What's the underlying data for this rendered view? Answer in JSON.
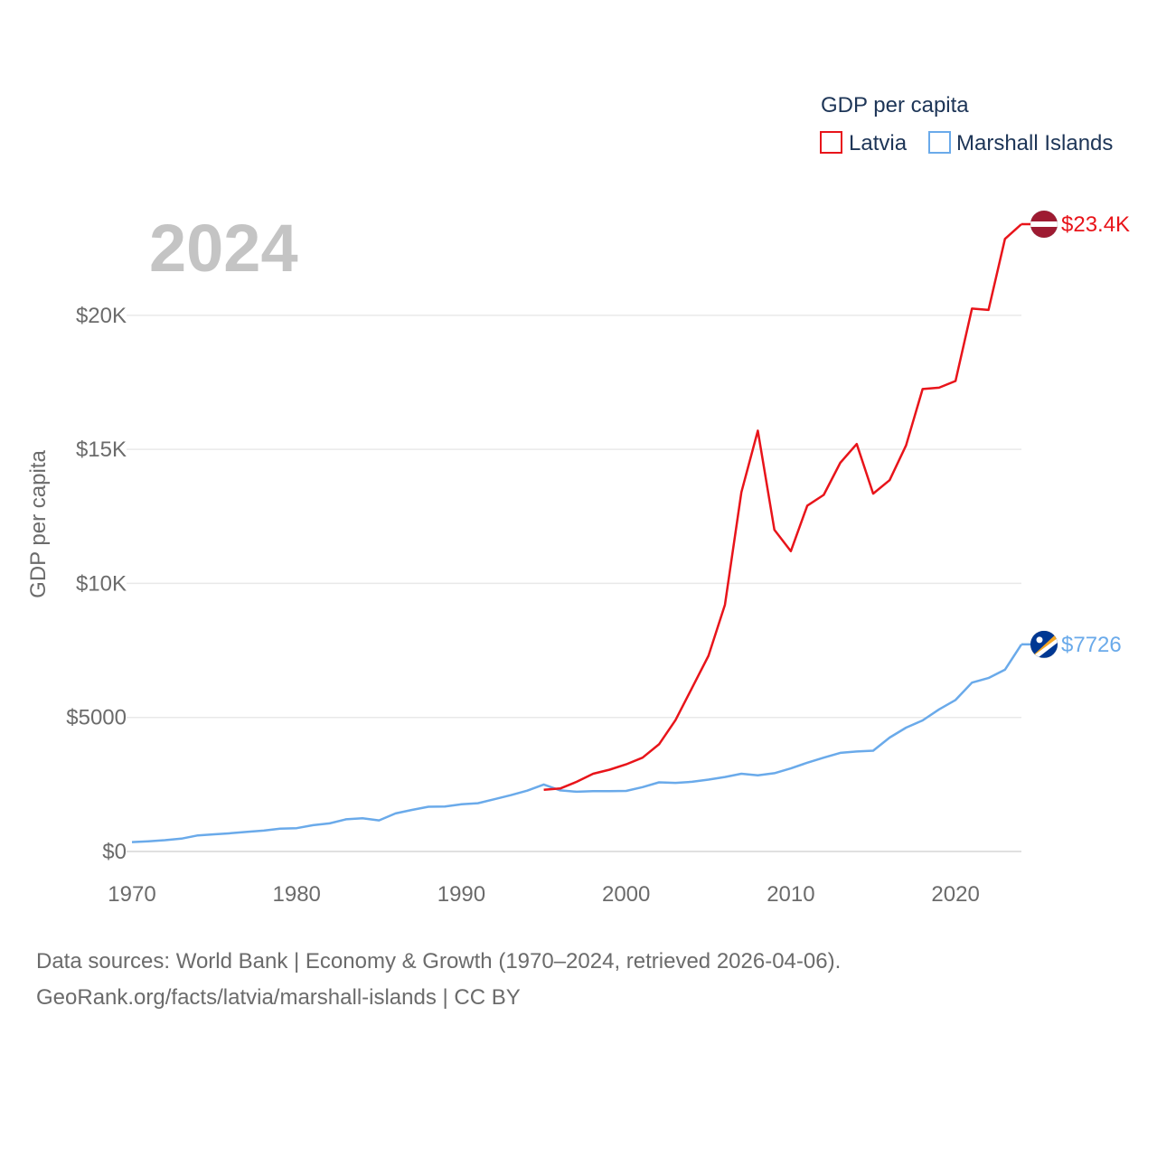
{
  "chart_data": {
    "type": "line",
    "year_label": "2024",
    "ylabel": "GDP per capita",
    "legend": {
      "title": "GDP per capita",
      "position": "top-right"
    },
    "xlim": [
      1970,
      2024
    ],
    "ylim": [
      0,
      23400
    ],
    "x_ticks": [
      1970,
      1980,
      1990,
      2000,
      2010,
      2020
    ],
    "x_tick_labels": [
      "1970",
      "1980",
      "1990",
      "2000",
      "2010",
      "2020"
    ],
    "y_ticks": [
      0,
      5000,
      10000,
      15000,
      20000
    ],
    "y_tick_labels": [
      "$0",
      "$5000",
      "$10K",
      "$15K",
      "$20K"
    ],
    "series": [
      {
        "name": "Latvia",
        "color": "#e8141a",
        "flag_icon": "latvia-flag-icon",
        "end_label": "$23.4K",
        "points": [
          [
            1995,
            2300
          ],
          [
            1996,
            2350
          ],
          [
            1997,
            2600
          ],
          [
            1998,
            2900
          ],
          [
            1999,
            3050
          ],
          [
            2000,
            3250
          ],
          [
            2001,
            3500
          ],
          [
            2002,
            4000
          ],
          [
            2003,
            4900
          ],
          [
            2004,
            6100
          ],
          [
            2005,
            7300
          ],
          [
            2006,
            9200
          ],
          [
            2007,
            13400
          ],
          [
            2008,
            15700
          ],
          [
            2009,
            12000
          ],
          [
            2010,
            11200
          ],
          [
            2011,
            12900
          ],
          [
            2012,
            13300
          ],
          [
            2013,
            14500
          ],
          [
            2014,
            15200
          ],
          [
            2015,
            13350
          ],
          [
            2016,
            13850
          ],
          [
            2017,
            15150
          ],
          [
            2018,
            17250
          ],
          [
            2019,
            17300
          ],
          [
            2020,
            17550
          ],
          [
            2021,
            20250
          ],
          [
            2022,
            20200
          ],
          [
            2023,
            22850
          ],
          [
            2024,
            23400
          ]
        ]
      },
      {
        "name": "Marshall Islands",
        "color": "#6aaaea",
        "flag_icon": "marshall-islands-flag-icon",
        "end_label": "$7726",
        "points": [
          [
            1970,
            350
          ],
          [
            1971,
            380
          ],
          [
            1972,
            420
          ],
          [
            1973,
            480
          ],
          [
            1974,
            600
          ],
          [
            1975,
            640
          ],
          [
            1976,
            680
          ],
          [
            1977,
            730
          ],
          [
            1978,
            780
          ],
          [
            1979,
            850
          ],
          [
            1980,
            870
          ],
          [
            1981,
            980
          ],
          [
            1982,
            1050
          ],
          [
            1983,
            1200
          ],
          [
            1984,
            1240
          ],
          [
            1985,
            1160
          ],
          [
            1986,
            1420
          ],
          [
            1987,
            1550
          ],
          [
            1988,
            1670
          ],
          [
            1989,
            1680
          ],
          [
            1990,
            1760
          ],
          [
            1991,
            1800
          ],
          [
            1992,
            1950
          ],
          [
            1993,
            2100
          ],
          [
            1994,
            2270
          ],
          [
            1995,
            2500
          ],
          [
            1996,
            2280
          ],
          [
            1997,
            2230
          ],
          [
            1998,
            2250
          ],
          [
            1999,
            2250
          ],
          [
            2000,
            2260
          ],
          [
            2001,
            2400
          ],
          [
            2002,
            2580
          ],
          [
            2003,
            2560
          ],
          [
            2004,
            2600
          ],
          [
            2005,
            2680
          ],
          [
            2006,
            2780
          ],
          [
            2007,
            2900
          ],
          [
            2008,
            2840
          ],
          [
            2009,
            2920
          ],
          [
            2010,
            3100
          ],
          [
            2011,
            3310
          ],
          [
            2012,
            3500
          ],
          [
            2013,
            3680
          ],
          [
            2014,
            3730
          ],
          [
            2015,
            3760
          ],
          [
            2016,
            4250
          ],
          [
            2017,
            4620
          ],
          [
            2018,
            4890
          ],
          [
            2019,
            5300
          ],
          [
            2020,
            5650
          ],
          [
            2021,
            6300
          ],
          [
            2022,
            6470
          ],
          [
            2023,
            6780
          ],
          [
            2024,
            7726
          ]
        ]
      }
    ]
  },
  "footer": {
    "line1": "Data sources: World Bank | Economy & Growth (1970–2024, retrieved 2026-04-06).",
    "line2": "GeoRank.org/facts/latvia/marshall-islands | CC BY"
  }
}
